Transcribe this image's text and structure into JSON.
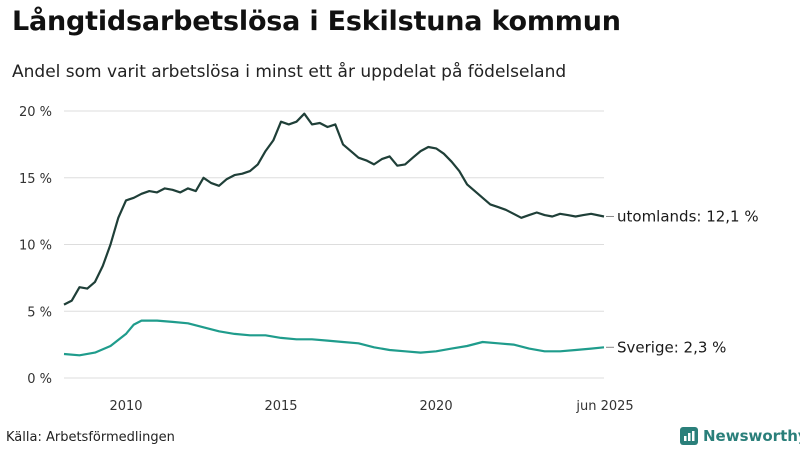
{
  "header": {
    "title": "Långtidsarbetslösa i Eskilstuna kommun",
    "subtitle": "Andel som varit arbetslösa i minst ett år uppdelat på födelseland"
  },
  "footer": {
    "source": "Källa: Arbetsförmedlingen",
    "brand": "Newsworthy"
  },
  "colors": {
    "utomlands": "#1f3f38",
    "sverige": "#1f9c8c",
    "grid": "#dddddd",
    "brand": "#2a7f7a"
  },
  "chart_data": {
    "type": "line",
    "title": "Långtidsarbetslösa i Eskilstuna kommun",
    "subtitle": "Andel som varit arbetslösa i minst ett år uppdelat på födelseland",
    "xlabel": "",
    "ylabel": "",
    "xlim": [
      "2008-01",
      "2025-06"
    ],
    "ylim": [
      0,
      20
    ],
    "x_ticks": [
      {
        "value": "2010-01",
        "label": "2010"
      },
      {
        "value": "2015-01",
        "label": "2015"
      },
      {
        "value": "2020-01",
        "label": "2020"
      },
      {
        "value": "2025-06",
        "label": "jun 2025"
      }
    ],
    "y_ticks": [
      {
        "value": 0,
        "label": "0 %"
      },
      {
        "value": 5,
        "label": "5 %"
      },
      {
        "value": 10,
        "label": "10 %"
      },
      {
        "value": 15,
        "label": "15 %"
      },
      {
        "value": 20,
        "label": "20 %"
      }
    ],
    "grid": true,
    "series": [
      {
        "name": "utomlands",
        "end_label": "utomlands: 12,1 %",
        "points": [
          [
            "2008-01",
            5.5
          ],
          [
            "2008-04",
            5.8
          ],
          [
            "2008-07",
            6.8
          ],
          [
            "2008-10",
            6.7
          ],
          [
            "2009-01",
            7.2
          ],
          [
            "2009-04",
            8.4
          ],
          [
            "2009-07",
            10.0
          ],
          [
            "2009-10",
            12.0
          ],
          [
            "2010-01",
            13.3
          ],
          [
            "2010-04",
            13.5
          ],
          [
            "2010-07",
            13.8
          ],
          [
            "2010-10",
            14.0
          ],
          [
            "2011-01",
            13.9
          ],
          [
            "2011-04",
            14.2
          ],
          [
            "2011-07",
            14.1
          ],
          [
            "2011-10",
            13.9
          ],
          [
            "2012-01",
            14.2
          ],
          [
            "2012-04",
            14.0
          ],
          [
            "2012-07",
            15.0
          ],
          [
            "2012-10",
            14.6
          ],
          [
            "2013-01",
            14.4
          ],
          [
            "2013-04",
            14.9
          ],
          [
            "2013-07",
            15.2
          ],
          [
            "2013-10",
            15.3
          ],
          [
            "2014-01",
            15.5
          ],
          [
            "2014-04",
            16.0
          ],
          [
            "2014-07",
            17.0
          ],
          [
            "2014-10",
            17.8
          ],
          [
            "2015-01",
            19.2
          ],
          [
            "2015-04",
            19.0
          ],
          [
            "2015-07",
            19.2
          ],
          [
            "2015-10",
            19.8
          ],
          [
            "2016-01",
            19.0
          ],
          [
            "2016-04",
            19.1
          ],
          [
            "2016-07",
            18.8
          ],
          [
            "2016-10",
            19.0
          ],
          [
            "2017-01",
            17.5
          ],
          [
            "2017-04",
            17.0
          ],
          [
            "2017-07",
            16.5
          ],
          [
            "2017-10",
            16.3
          ],
          [
            "2018-01",
            16.0
          ],
          [
            "2018-04",
            16.4
          ],
          [
            "2018-07",
            16.6
          ],
          [
            "2018-10",
            15.9
          ],
          [
            "2019-01",
            16.0
          ],
          [
            "2019-04",
            16.5
          ],
          [
            "2019-07",
            17.0
          ],
          [
            "2019-10",
            17.3
          ],
          [
            "2020-01",
            17.2
          ],
          [
            "2020-04",
            16.8
          ],
          [
            "2020-07",
            16.2
          ],
          [
            "2020-10",
            15.5
          ],
          [
            "2021-01",
            14.5
          ],
          [
            "2021-04",
            14.0
          ],
          [
            "2021-07",
            13.5
          ],
          [
            "2021-10",
            13.0
          ],
          [
            "2022-01",
            12.8
          ],
          [
            "2022-04",
            12.6
          ],
          [
            "2022-07",
            12.3
          ],
          [
            "2022-10",
            12.0
          ],
          [
            "2023-01",
            12.2
          ],
          [
            "2023-04",
            12.4
          ],
          [
            "2023-07",
            12.2
          ],
          [
            "2023-10",
            12.1
          ],
          [
            "2024-01",
            12.3
          ],
          [
            "2024-04",
            12.2
          ],
          [
            "2024-07",
            12.1
          ],
          [
            "2024-10",
            12.2
          ],
          [
            "2025-01",
            12.3
          ],
          [
            "2025-06",
            12.1
          ]
        ]
      },
      {
        "name": "Sverige",
        "end_label": "Sverige:  2,3 %",
        "points": [
          [
            "2008-01",
            1.8
          ],
          [
            "2008-07",
            1.7
          ],
          [
            "2009-01",
            1.9
          ],
          [
            "2009-07",
            2.4
          ],
          [
            "2010-01",
            3.3
          ],
          [
            "2010-04",
            4.0
          ],
          [
            "2010-07",
            4.3
          ],
          [
            "2011-01",
            4.3
          ],
          [
            "2011-07",
            4.2
          ],
          [
            "2012-01",
            4.1
          ],
          [
            "2012-07",
            3.8
          ],
          [
            "2013-01",
            3.5
          ],
          [
            "2013-07",
            3.3
          ],
          [
            "2014-01",
            3.2
          ],
          [
            "2014-07",
            3.2
          ],
          [
            "2015-01",
            3.0
          ],
          [
            "2015-07",
            2.9
          ],
          [
            "2016-01",
            2.9
          ],
          [
            "2016-07",
            2.8
          ],
          [
            "2017-01",
            2.7
          ],
          [
            "2017-07",
            2.6
          ],
          [
            "2018-01",
            2.3
          ],
          [
            "2018-07",
            2.1
          ],
          [
            "2019-01",
            2.0
          ],
          [
            "2019-07",
            1.9
          ],
          [
            "2020-01",
            2.0
          ],
          [
            "2020-07",
            2.2
          ],
          [
            "2021-01",
            2.4
          ],
          [
            "2021-07",
            2.7
          ],
          [
            "2022-01",
            2.6
          ],
          [
            "2022-07",
            2.5
          ],
          [
            "2023-01",
            2.2
          ],
          [
            "2023-07",
            2.0
          ],
          [
            "2024-01",
            2.0
          ],
          [
            "2024-07",
            2.1
          ],
          [
            "2025-01",
            2.2
          ],
          [
            "2025-06",
            2.3
          ]
        ]
      }
    ]
  }
}
